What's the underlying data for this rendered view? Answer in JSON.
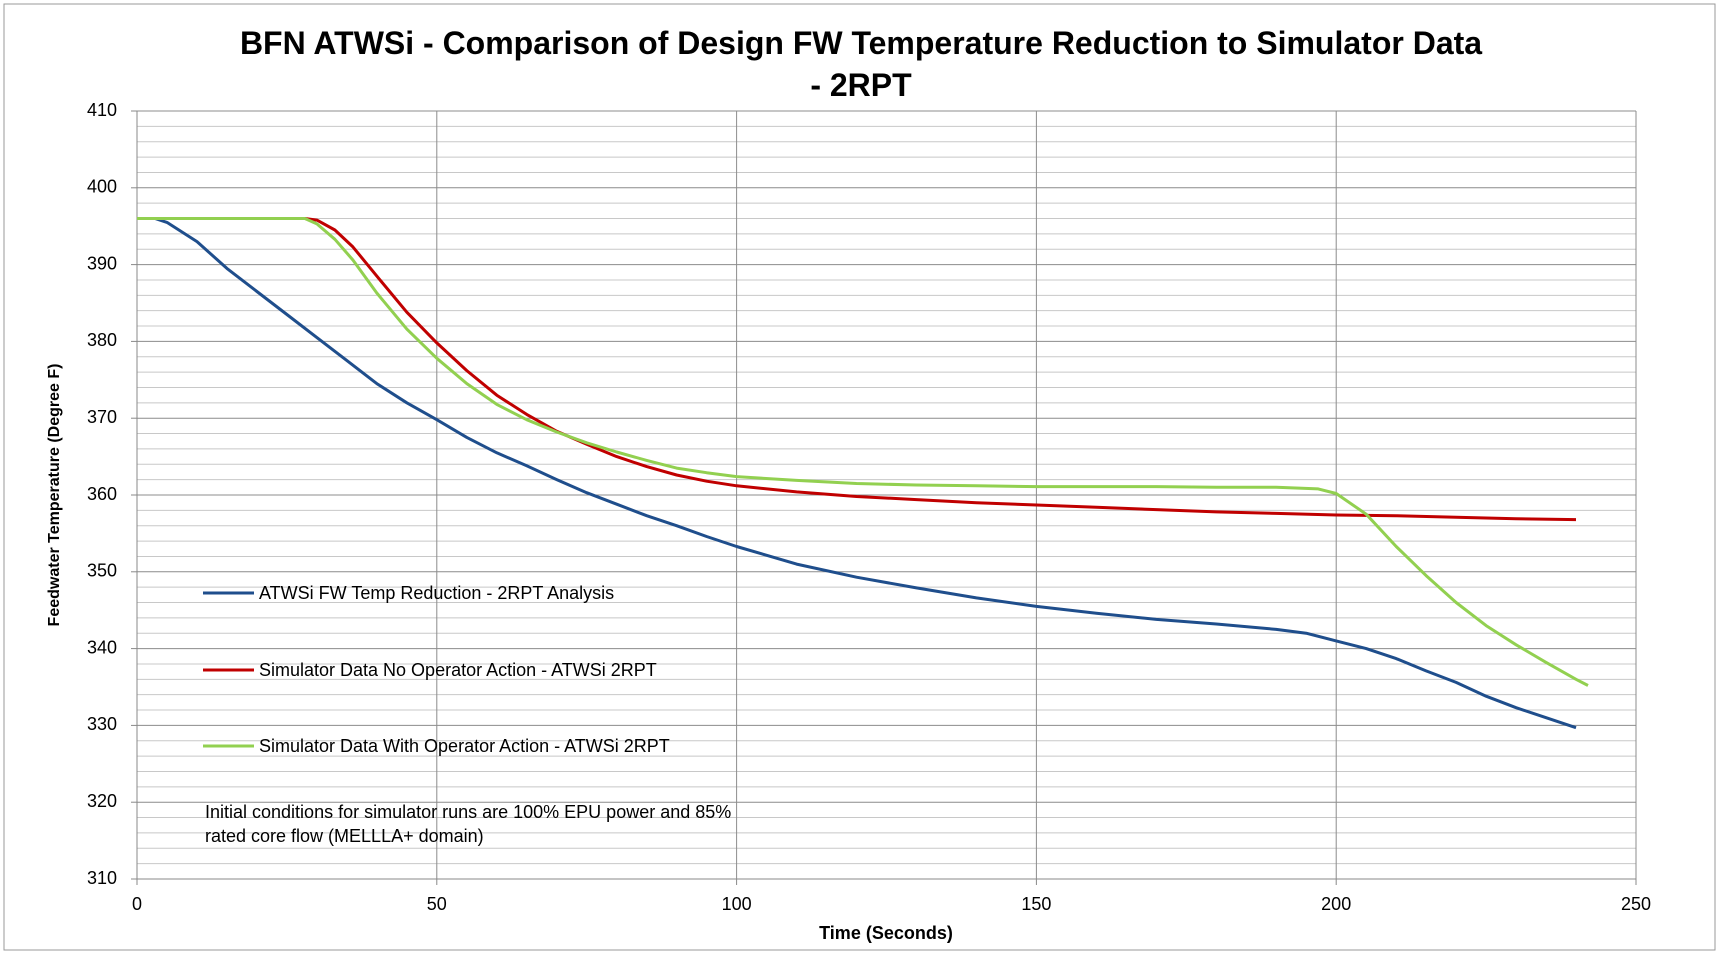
{
  "chart_data": {
    "type": "line",
    "title": "BFN ATWSi - Comparison of Design FW Temperature Reduction to Simulator Data - 2RPT",
    "x_label": "Time (Seconds)",
    "y_label": "Feedwater Temperature (Degree F)",
    "annotation": "Initial conditions for simulator runs are 100% EPU power and 85% rated core flow (MELLLA+ domain)",
    "xlim": [
      0,
      250
    ],
    "ylim": [
      310,
      410
    ],
    "xticks": [
      0,
      50,
      100,
      150,
      200,
      250
    ],
    "yticks": [
      310,
      320,
      330,
      340,
      350,
      360,
      370,
      380,
      390,
      400,
      410
    ],
    "grid": true,
    "minor_grid": true,
    "legend": "left",
    "series": [
      {
        "name": "ATWSi FW Temp Reduction - 2RPT Analysis",
        "color": "#1f4e8c",
        "x": [
          0,
          3,
          5,
          10,
          15,
          20,
          25,
          30,
          35,
          40,
          45,
          50,
          55,
          60,
          65,
          70,
          75,
          80,
          85,
          90,
          95,
          100,
          110,
          120,
          130,
          140,
          150,
          160,
          170,
          180,
          190,
          195,
          200,
          205,
          210,
          215,
          220,
          225,
          230,
          235,
          240
        ],
        "values": [
          396,
          396,
          395.5,
          393,
          389.5,
          386.5,
          383.5,
          380.5,
          377.5,
          374.5,
          372,
          369.8,
          367.5,
          365.5,
          363.8,
          362,
          360.3,
          358.8,
          357.3,
          356,
          354.6,
          353.3,
          351,
          349.3,
          347.9,
          346.6,
          345.5,
          344.6,
          343.8,
          343.2,
          342.5,
          342,
          341,
          340,
          338.7,
          337.1,
          335.6,
          333.8,
          332.3,
          331,
          329.7
        ]
      },
      {
        "name": "Simulator Data No Operator Action - ATWSi 2RPT",
        "color": "#c00000",
        "x": [
          0,
          28,
          30,
          33,
          36,
          40,
          45,
          50,
          55,
          60,
          65,
          70,
          75,
          80,
          85,
          90,
          95,
          100,
          110,
          120,
          130,
          140,
          150,
          160,
          170,
          180,
          190,
          200,
          210,
          220,
          230,
          240
        ],
        "values": [
          396,
          396,
          395.8,
          394.5,
          392.3,
          388.5,
          383.8,
          379.8,
          376.2,
          373,
          370.5,
          368.3,
          366.6,
          365,
          363.7,
          362.6,
          361.8,
          361.2,
          360.4,
          359.8,
          359.4,
          359,
          358.7,
          358.4,
          358.1,
          357.8,
          357.6,
          357.4,
          357.3,
          357.1,
          356.9,
          356.8
        ]
      },
      {
        "name": "Simulator Data With Operator Action - ATWSi 2RPT",
        "color": "#92d050",
        "x": [
          0,
          28,
          30,
          33,
          36,
          40,
          45,
          50,
          55,
          60,
          65,
          70,
          75,
          80,
          85,
          90,
          95,
          100,
          110,
          120,
          130,
          140,
          150,
          160,
          170,
          180,
          190,
          197,
          200,
          205,
          210,
          215,
          220,
          225,
          230,
          235,
          240,
          242
        ],
        "values": [
          396,
          396,
          395.3,
          393.3,
          390.6,
          386.3,
          381.6,
          377.8,
          374.5,
          371.8,
          369.8,
          368.2,
          366.8,
          365.6,
          364.5,
          363.5,
          362.9,
          362.4,
          361.9,
          361.5,
          361.3,
          361.2,
          361.1,
          361.1,
          361.1,
          361,
          361,
          360.8,
          360.2,
          357.5,
          353.3,
          349.5,
          346,
          343,
          340.5,
          338.2,
          336,
          335.2
        ]
      }
    ]
  }
}
